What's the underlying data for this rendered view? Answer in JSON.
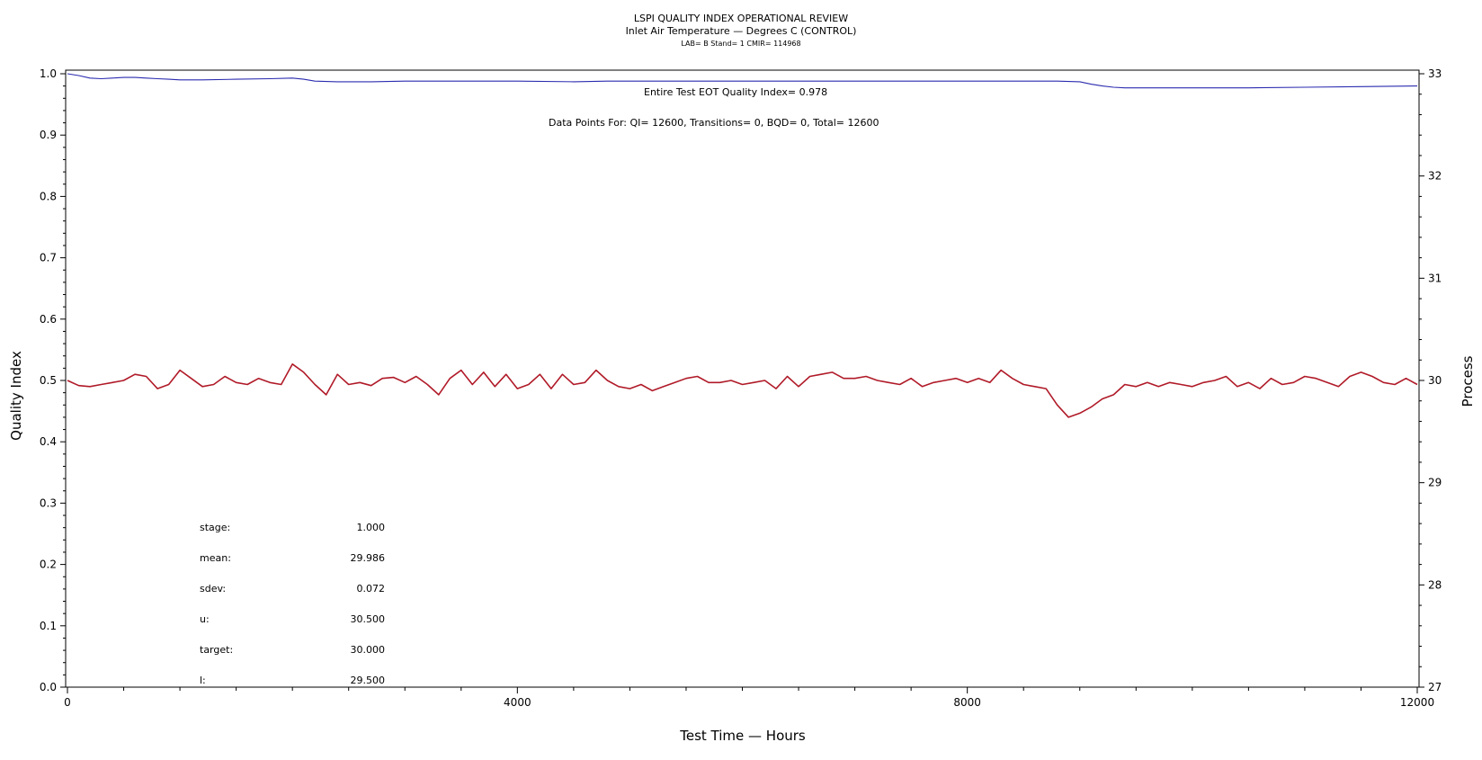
{
  "chart_data": {
    "type": "line",
    "title": "LSPI QUALITY INDEX OPERATIONAL REVIEW",
    "subtitle": "Inlet Air Temperature — Degrees C (CONTROL)",
    "subtitle2": "LAB= B Stand= 1 CMIR= 114968",
    "xlabel": "Test Time — Hours",
    "ylabel_left": "Quality Index",
    "ylabel_right": "Process",
    "xlim": [
      0,
      12000
    ],
    "ylim_left": [
      0,
      1
    ],
    "ylim_right": [
      27,
      33
    ],
    "x_ticks": [
      "0",
      "4000",
      "8000",
      "12000"
    ],
    "x_tick_values": [
      0,
      4000,
      8000,
      12000
    ],
    "y_left_ticks": [
      "0.0",
      "0.1",
      "0.2",
      "0.3",
      "0.4",
      "0.5",
      "0.6",
      "0.7",
      "0.8",
      "0.9",
      "1.0"
    ],
    "y_right_ticks": [
      "27",
      "28",
      "29",
      "30",
      "31",
      "32",
      "33"
    ],
    "annotations": {
      "eot": "Entire Test EOT Quality Index=   0.978",
      "points": "Data Points For: QI= 12600, Transitions=     0, BQD=     0, Total= 12600"
    },
    "stats": [
      {
        "label": "stage:",
        "value": "1.000"
      },
      {
        "label": "mean:",
        "value": "29.986"
      },
      {
        "label": "sdev:",
        "value": "0.072"
      },
      {
        "label": "u:",
        "value": "30.500"
      },
      {
        "label": "target:",
        "value": "30.000"
      },
      {
        "label": "l:",
        "value": "29.500"
      }
    ],
    "series": [
      {
        "axis": "left",
        "color": "#2b2bb0",
        "x": [
          0,
          100,
          200,
          300,
          400,
          500,
          600,
          700,
          800,
          900,
          1000,
          1200,
          1500,
          1800,
          2000,
          2100,
          2200,
          2400,
          2700,
          3000,
          3300,
          3600,
          3800,
          4000,
          4500,
          4800,
          5000,
          5500,
          6000,
          6500,
          7000,
          7500,
          8000,
          8500,
          8800,
          9000,
          9100,
          9200,
          9300,
          9400,
          9500,
          9700,
          10000,
          10500,
          11000,
          11500,
          12000
        ],
        "y": [
          1.0,
          0.997,
          0.993,
          0.992,
          0.993,
          0.994,
          0.994,
          0.993,
          0.992,
          0.991,
          0.99,
          0.99,
          0.991,
          0.992,
          0.993,
          0.991,
          0.988,
          0.987,
          0.987,
          0.988,
          0.988,
          0.988,
          0.988,
          0.988,
          0.987,
          0.988,
          0.988,
          0.988,
          0.988,
          0.988,
          0.988,
          0.988,
          0.988,
          0.988,
          0.988,
          0.987,
          0.983,
          0.98,
          0.978,
          0.977,
          0.977,
          0.977,
          0.977,
          0.977,
          0.978,
          0.979,
          0.98
        ]
      },
      {
        "axis": "right",
        "color": "#b01a28",
        "x": [
          0,
          100,
          200,
          300,
          400,
          500,
          600,
          700,
          800,
          900,
          1000,
          1100,
          1200,
          1300,
          1400,
          1500,
          1600,
          1700,
          1800,
          1900,
          2000,
          2100,
          2200,
          2300,
          2400,
          2500,
          2600,
          2700,
          2800,
          2900,
          3000,
          3100,
          3200,
          3300,
          3400,
          3500,
          3600,
          3700,
          3800,
          3900,
          4000,
          4100,
          4200,
          4300,
          4400,
          4500,
          4600,
          4700,
          4800,
          4900,
          5000,
          5100,
          5200,
          5300,
          5400,
          5500,
          5600,
          5700,
          5800,
          5900,
          6000,
          6100,
          6200,
          6300,
          6400,
          6500,
          6600,
          6700,
          6800,
          6900,
          7000,
          7100,
          7200,
          7300,
          7400,
          7500,
          7600,
          7700,
          7800,
          7900,
          8000,
          8100,
          8200,
          8300,
          8400,
          8500,
          8600,
          8700,
          8800,
          8900,
          9000,
          9100,
          9200,
          9300,
          9400,
          9500,
          9600,
          9700,
          9800,
          9900,
          10000,
          10100,
          10200,
          10300,
          10400,
          10500,
          10600,
          10700,
          10800,
          10900,
          11000,
          11100,
          11200,
          11300,
          11400,
          11500,
          11600,
          11700,
          11800,
          11900,
          12000
        ],
        "y": [
          30.0,
          29.95,
          29.94,
          29.96,
          29.98,
          30.0,
          30.06,
          30.04,
          29.92,
          29.96,
          30.1,
          30.02,
          29.94,
          29.96,
          30.04,
          29.98,
          29.96,
          30.02,
          29.98,
          29.96,
          30.16,
          30.08,
          29.96,
          29.86,
          30.06,
          29.96,
          29.98,
          29.95,
          30.02,
          30.03,
          29.98,
          30.04,
          29.96,
          29.86,
          30.02,
          30.1,
          29.96,
          30.08,
          29.94,
          30.06,
          29.92,
          29.96,
          30.06,
          29.92,
          30.06,
          29.96,
          29.98,
          30.1,
          30.0,
          29.94,
          29.92,
          29.96,
          29.9,
          29.94,
          29.98,
          30.02,
          30.04,
          29.98,
          29.98,
          30.0,
          29.96,
          29.98,
          30.0,
          29.92,
          30.04,
          29.94,
          30.04,
          30.06,
          30.08,
          30.02,
          30.02,
          30.04,
          30.0,
          29.98,
          29.96,
          30.02,
          29.94,
          29.98,
          30.0,
          30.02,
          29.98,
          30.02,
          29.98,
          30.1,
          30.02,
          29.96,
          29.94,
          29.92,
          29.76,
          29.64,
          29.68,
          29.74,
          29.82,
          29.86,
          29.96,
          29.94,
          29.98,
          29.94,
          29.98,
          29.96,
          29.94,
          29.98,
          30.0,
          30.04,
          29.94,
          29.98,
          29.92,
          30.02,
          29.96,
          29.98,
          30.04,
          30.02,
          29.98,
          29.94,
          30.04,
          30.08,
          30.04,
          29.98,
          29.96,
          30.02,
          29.96
        ]
      }
    ]
  }
}
